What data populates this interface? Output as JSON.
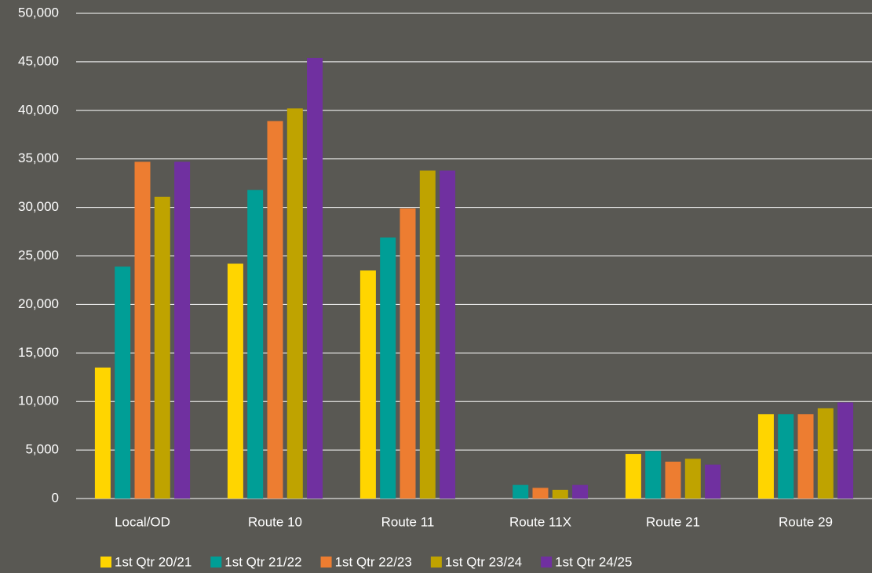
{
  "chart_data": {
    "type": "bar",
    "categories": [
      "Local/OD",
      "Route 10",
      "Route 11",
      "Route 11X",
      "Route 21",
      "Route 29"
    ],
    "series": [
      {
        "name": "1st Qtr 20/21",
        "color": "#ffd500",
        "values": [
          13500,
          24200,
          23500,
          0,
          4600,
          8700
        ]
      },
      {
        "name": "1st Qtr 21/22",
        "color": "#009e96",
        "values": [
          23900,
          31800,
          26900,
          1400,
          4900,
          8700
        ]
      },
      {
        "name": "1st Qtr 22/23",
        "color": "#ed7d31",
        "values": [
          34700,
          38900,
          29900,
          1100,
          3800,
          8700
        ]
      },
      {
        "name": "1st Qtr 23/24",
        "color": "#bfa300",
        "values": [
          31100,
          40200,
          33800,
          900,
          4100,
          9300
        ]
      },
      {
        "name": "1st Qtr 24/25",
        "color": "#7030a0",
        "values": [
          34700,
          45400,
          33800,
          1400,
          3500,
          9900
        ]
      }
    ],
    "ylim": [
      0,
      50000
    ],
    "yticks": [
      0,
      {
        "value": 5000,
        "label": "5,000"
      },
      {
        "value": 10000,
        "label": "10,000"
      },
      {
        "value": 15000,
        "label": "15,000"
      },
      {
        "value": 20000,
        "label": "20,000"
      },
      {
        "value": 25000,
        "label": "25,000"
      },
      {
        "value": 30000,
        "label": "30,000"
      },
      {
        "value": 35000,
        "label": "35,000"
      },
      {
        "value": 40000,
        "label": "40,000"
      },
      {
        "value": 45000,
        "label": "45,000"
      },
      {
        "value": 50000,
        "label": "50,000"
      }
    ],
    "grid": true,
    "legend": "bottom"
  }
}
